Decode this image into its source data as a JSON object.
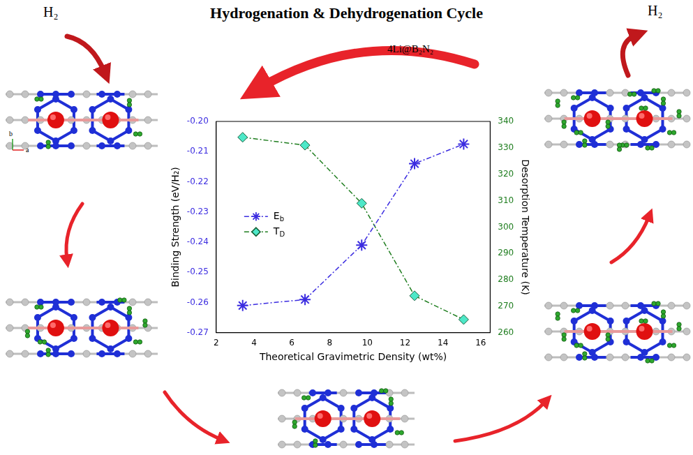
{
  "chart_data": {
    "type": "line",
    "title": "Hydrogenation & Dehydrogenation Cycle",
    "annotations": [
      "H₂",
      "H₂",
      "4Li@B₂N₂",
      "b",
      "a"
    ],
    "x_label": "Theoretical Gravimetric Density (wt%)",
    "y_label": "Binding Strength (eV/H₂)",
    "y2_label": "Desorption Temperature (K)",
    "x": [
      3.4,
      6.7,
      9.7,
      12.5,
      15.1
    ],
    "series": [
      {
        "name": "Eb",
        "color": "#3b2ce0",
        "marker": "star",
        "line_style": "dashdot",
        "values": [
          -0.261,
          -0.259,
          -0.241,
          -0.214,
          -0.2075
        ]
      },
      {
        "name": "TD",
        "color": "#1e7d1e",
        "marker": "diamond",
        "line_style": "dashdot",
        "axis": "y2",
        "values": [
          334,
          331,
          309,
          274,
          265
        ]
      }
    ],
    "xlim": [
      2,
      16.5
    ],
    "xticks": [
      2,
      4,
      6,
      8,
      10,
      12,
      14,
      16
    ],
    "ylim": [
      -0.27,
      -0.2
    ],
    "yticks": [
      -0.27,
      -0.26,
      -0.25,
      -0.24,
      -0.23,
      -0.22,
      -0.21,
      {
        "value": -0.2,
        "label": "-0.20"
      }
    ],
    "y2lim": [
      260,
      340
    ],
    "y2ticks": [
      260,
      270,
      280,
      290,
      300,
      310,
      320,
      330,
      340
    ],
    "grid": false,
    "legend": "left"
  }
}
